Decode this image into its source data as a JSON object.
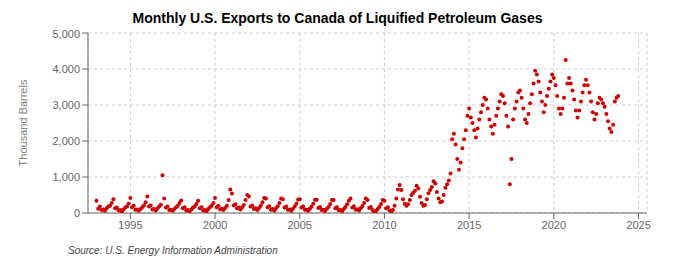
{
  "chart_data": {
    "type": "scatter",
    "title": "Monthly U.S. Exports to Canada of Liquified Petroleum Gases",
    "ylabel": "Thousand Barrels",
    "annotation": "Source: U.S. Energy Information Administration",
    "color": "#cc0000",
    "grid": true,
    "xlim": [
      1992.5,
      2025.5
    ],
    "xticks": [
      1995,
      2000,
      2005,
      2010,
      2015,
      2020,
      2025
    ],
    "ylim": [
      0,
      5000
    ],
    "yticks": [
      0,
      {
        "value": 1000,
        "label": "1,000"
      },
      {
        "value": 2000,
        "label": "2,000"
      },
      {
        "value": 3000,
        "label": "3,000"
      },
      {
        "value": 4000,
        "label": "4,000"
      },
      {
        "value": 5000,
        "label": "5,000"
      }
    ],
    "x": [
      1993.0,
      1993.1,
      1993.2,
      1993.3,
      1993.4,
      1993.5,
      1993.6,
      1993.7,
      1993.8,
      1993.9,
      1994.0,
      1994.1,
      1994.2,
      1994.3,
      1994.4,
      1994.5,
      1994.6,
      1994.7,
      1994.8,
      1994.9,
      1995.0,
      1995.1,
      1995.2,
      1995.3,
      1995.4,
      1995.5,
      1995.6,
      1995.7,
      1995.8,
      1995.9,
      1996.0,
      1996.1,
      1996.2,
      1996.3,
      1996.4,
      1996.5,
      1996.6,
      1996.7,
      1996.8,
      1996.9,
      1997.0,
      1997.1,
      1997.2,
      1997.3,
      1997.4,
      1997.5,
      1997.6,
      1997.7,
      1997.8,
      1997.9,
      1998.0,
      1998.1,
      1998.2,
      1998.3,
      1998.4,
      1998.5,
      1998.6,
      1998.7,
      1998.8,
      1998.9,
      1999.0,
      1999.1,
      1999.2,
      1999.3,
      1999.4,
      1999.5,
      1999.6,
      1999.7,
      1999.8,
      1999.9,
      2000.0,
      2000.1,
      2000.2,
      2000.3,
      2000.4,
      2000.5,
      2000.6,
      2000.7,
      2000.8,
      2000.9,
      2001.0,
      2001.1,
      2001.2,
      2001.3,
      2001.4,
      2001.5,
      2001.6,
      2001.7,
      2001.8,
      2001.9,
      2002.0,
      2002.1,
      2002.2,
      2002.3,
      2002.4,
      2002.5,
      2002.6,
      2002.7,
      2002.8,
      2002.9,
      2003.0,
      2003.1,
      2003.2,
      2003.3,
      2003.4,
      2003.5,
      2003.6,
      2003.7,
      2003.8,
      2003.9,
      2004.0,
      2004.1,
      2004.2,
      2004.3,
      2004.4,
      2004.5,
      2004.6,
      2004.7,
      2004.8,
      2004.9,
      2005.0,
      2005.1,
      2005.2,
      2005.3,
      2005.4,
      2005.5,
      2005.6,
      2005.7,
      2005.8,
      2005.9,
      2006.0,
      2006.1,
      2006.2,
      2006.3,
      2006.4,
      2006.5,
      2006.6,
      2006.7,
      2006.8,
      2006.9,
      2007.0,
      2007.1,
      2007.2,
      2007.3,
      2007.4,
      2007.5,
      2007.6,
      2007.7,
      2007.8,
      2007.9,
      2008.0,
      2008.1,
      2008.2,
      2008.3,
      2008.4,
      2008.5,
      2008.6,
      2008.7,
      2008.8,
      2008.9,
      2009.0,
      2009.1,
      2009.2,
      2009.3,
      2009.4,
      2009.5,
      2009.6,
      2009.7,
      2009.8,
      2009.9,
      2010.0,
      2010.1,
      2010.2,
      2010.3,
      2010.4,
      2010.5,
      2010.6,
      2010.7,
      2010.8,
      2010.9,
      2011.0,
      2011.1,
      2011.2,
      2011.3,
      2011.4,
      2011.5,
      2011.6,
      2011.7,
      2011.8,
      2011.9,
      2012.0,
      2012.1,
      2012.2,
      2012.3,
      2012.4,
      2012.5,
      2012.6,
      2012.7,
      2012.8,
      2012.9,
      2013.0,
      2013.1,
      2013.2,
      2013.3,
      2013.4,
      2013.5,
      2013.6,
      2013.7,
      2013.8,
      2013.9,
      2014.0,
      2014.1,
      2014.2,
      2014.3,
      2014.4,
      2014.5,
      2014.6,
      2014.7,
      2014.8,
      2014.9,
      2015.0,
      2015.1,
      2015.2,
      2015.3,
      2015.4,
      2015.5,
      2015.6,
      2015.7,
      2015.8,
      2015.9,
      2016.0,
      2016.1,
      2016.2,
      2016.3,
      2016.4,
      2016.5,
      2016.6,
      2016.7,
      2016.8,
      2016.9,
      2017.0,
      2017.1,
      2017.2,
      2017.3,
      2017.4,
      2017.5,
      2017.6,
      2017.7,
      2017.8,
      2017.9,
      2018.0,
      2018.1,
      2018.2,
      2018.3,
      2018.4,
      2018.5,
      2018.6,
      2018.7,
      2018.8,
      2018.9,
      2019.0,
      2019.1,
      2019.2,
      2019.3,
      2019.4,
      2019.5,
      2019.6,
      2019.7,
      2019.8,
      2019.9,
      2020.0,
      2020.1,
      2020.2,
      2020.3,
      2020.4,
      2020.5,
      2020.6,
      2020.7,
      2020.8,
      2020.9,
      2021.0,
      2021.1,
      2021.2,
      2021.3,
      2021.4,
      2021.5,
      2021.6,
      2021.7,
      2021.8,
      2021.9,
      2022.0,
      2022.1,
      2022.2,
      2022.3,
      2022.4,
      2022.5,
      2022.6,
      2022.7,
      2022.8,
      2022.9,
      2023.0,
      2023.1,
      2023.2,
      2023.3,
      2023.4,
      2023.5,
      2023.6,
      2023.7,
      2023.8
    ],
    "values": [
      340,
      120,
      180,
      80,
      100,
      60,
      130,
      180,
      200,
      280,
      380,
      130,
      150,
      70,
      80,
      50,
      100,
      150,
      180,
      260,
      420,
      160,
      200,
      90,
      100,
      60,
      110,
      160,
      210,
      300,
      460,
      180,
      210,
      100,
      110,
      70,
      130,
      180,
      230,
      1050,
      400,
      150,
      180,
      80,
      90,
      60,
      110,
      160,
      200,
      280,
      350,
      130,
      160,
      70,
      80,
      50,
      100,
      150,
      180,
      250,
      340,
      130,
      160,
      70,
      80,
      50,
      110,
      160,
      200,
      280,
      420,
      160,
      200,
      100,
      120,
      80,
      140,
      200,
      360,
      650,
      540,
      210,
      240,
      130,
      150,
      100,
      160,
      220,
      360,
      500,
      460,
      180,
      210,
      110,
      130,
      80,
      140,
      200,
      300,
      420,
      400,
      160,
      190,
      90,
      110,
      70,
      130,
      190,
      280,
      400,
      380,
      150,
      180,
      90,
      100,
      65,
      120,
      180,
      260,
      370,
      380,
      150,
      180,
      90,
      100,
      65,
      120,
      180,
      260,
      370,
      370,
      140,
      170,
      80,
      90,
      55,
      115,
      170,
      250,
      360,
      360,
      130,
      160,
      75,
      85,
      50,
      110,
      165,
      240,
      340,
      400,
      155,
      185,
      90,
      105,
      70,
      130,
      195,
      280,
      400,
      360,
      140,
      170,
      80,
      30,
      55,
      110,
      170,
      250,
      360,
      340,
      130,
      160,
      75,
      50,
      80,
      200,
      400,
      650,
      780,
      640,
      380,
      260,
      200,
      240,
      360,
      500,
      560,
      620,
      760,
      680,
      450,
      280,
      200,
      220,
      380,
      550,
      640,
      720,
      880,
      820,
      580,
      400,
      300,
      320,
      500,
      700,
      800,
      900,
      1100,
      2050,
      2200,
      1900,
      1500,
      1200,
      1400,
      1800,
      2050,
      2300,
      2700,
      2900,
      2650,
      2500,
      2300,
      2100,
      2350,
      2600,
      2800,
      3000,
      3200,
      3150,
      2900,
      2600,
      2400,
      2200,
      2450,
      2700,
      2900,
      3100,
      3300,
      3250,
      3050,
      2700,
      2400,
      800,
      1500,
      2600,
      2900,
      3100,
      3350,
      3400,
      3200,
      2900,
      2600,
      2500,
      2750,
      3050,
      3300,
      3600,
      3950,
      3850,
      3650,
      3350,
      3100,
      2800,
      3000,
      3250,
      3450,
      3650,
      3850,
      3750,
      3550,
      3250,
      2900,
      2750,
      2900,
      3200,
      4250,
      3600,
      3750,
      3600,
      3400,
      3150,
      2850,
      2650,
      2850,
      3100,
      3350,
      3550,
      3700,
      3550,
      3350,
      3100,
      2800,
      2600,
      2750,
      3050,
      3200,
      3150,
      3050,
      2950,
      2750,
      2550,
      2350,
      2250,
      2450,
      3100,
      3200,
      3250
    ]
  }
}
